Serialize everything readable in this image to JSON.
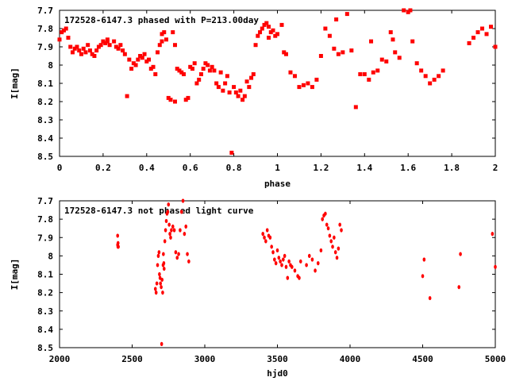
{
  "chart_data": [
    {
      "type": "scatter",
      "title": "172528-6147.3 phased with P=213.00day",
      "xlabel": "phase",
      "ylabel": "I[mag]",
      "xlim": [
        0,
        2
      ],
      "ylim": [
        7.7,
        8.5
      ],
      "y_inverted": true,
      "grid": false,
      "marker_color": "#ff0000",
      "xticks": [
        "0",
        "0.2",
        "0.4",
        "0.6",
        "0.8",
        "1",
        "1.2",
        "1.4",
        "1.6",
        "1.8",
        "2"
      ],
      "yticks": [
        "7.7",
        "7.8",
        "7.9",
        "8",
        "8.1",
        "8.2",
        "8.3",
        "8.4",
        "8.5"
      ],
      "series": [
        {
          "x": [
            0.0,
            0.02,
            0.03,
            0.04,
            0.05,
            0.06,
            0.07,
            0.08,
            0.09,
            0.1,
            0.11,
            0.12,
            0.13,
            0.14,
            0.15,
            0.16,
            0.17,
            0.18,
            0.19,
            0.2,
            0.21,
            0.22,
            0.23,
            0.25,
            0.26,
            0.27,
            0.28,
            0.29,
            0.3,
            0.31,
            0.32,
            0.33,
            0.34,
            0.35,
            0.36,
            0.37,
            0.38,
            0.39,
            0.4,
            0.41,
            0.42,
            0.43,
            0.44,
            0.45,
            0.46,
            0.47,
            0.48,
            0.49,
            0.5,
            0.51,
            0.52,
            0.53,
            0.54,
            0.55,
            0.56,
            0.57,
            0.58,
            0.59,
            0.6,
            0.61,
            0.62,
            0.63,
            0.64,
            0.65,
            0.66,
            0.67,
            0.68,
            0.69,
            0.7,
            0.71,
            0.72,
            0.73,
            0.74,
            0.75,
            0.76,
            0.77,
            0.78,
            0.79,
            0.8,
            0.81,
            0.82,
            0.83,
            0.84,
            0.85,
            0.86,
            0.87,
            0.88,
            0.89,
            0.9,
            0.91,
            0.92,
            0.93,
            0.94,
            0.95,
            0.96,
            0.97,
            0.98,
            0.99,
            1.0,
            1.02,
            1.04,
            1.06,
            1.08,
            1.1,
            1.12,
            1.14,
            1.16,
            1.18,
            1.2,
            1.22,
            1.24,
            1.26,
            1.28,
            1.3,
            1.32,
            1.34,
            1.36,
            1.38,
            1.4,
            1.42,
            1.44,
            1.46,
            1.48,
            1.5,
            1.52,
            1.54,
            1.56,
            1.58,
            1.6,
            1.62,
            1.64,
            1.66,
            1.68,
            1.7,
            1.72,
            1.74,
            1.76,
            1.88,
            1.9,
            1.92,
            1.94,
            1.96,
            1.98,
            2.0,
            0.01,
            0.22,
            0.47,
            0.53,
            0.96,
            1.03,
            1.27,
            1.43,
            1.53,
            1.61
          ],
          "y": [
            7.86,
            7.81,
            7.8,
            7.85,
            7.9,
            7.93,
            7.91,
            7.9,
            7.92,
            7.94,
            7.91,
            7.93,
            7.89,
            7.92,
            7.94,
            7.95,
            7.92,
            7.9,
            7.89,
            7.87,
            7.88,
            7.86,
            7.89,
            7.87,
            7.9,
            7.91,
            7.89,
            7.92,
            7.94,
            8.17,
            7.97,
            8.02,
            7.99,
            8.0,
            7.97,
            7.95,
            7.96,
            7.94,
            7.98,
            7.97,
            8.02,
            8.01,
            8.05,
            7.93,
            7.89,
            7.83,
            7.82,
            7.86,
            8.18,
            8.19,
            7.82,
            8.2,
            8.02,
            8.03,
            8.04,
            8.05,
            8.19,
            8.18,
            8.01,
            8.02,
            7.99,
            8.1,
            8.08,
            8.05,
            8.02,
            7.99,
            8.0,
            8.03,
            8.01,
            8.03,
            8.1,
            8.12,
            8.04,
            8.14,
            8.1,
            8.06,
            8.15,
            8.48,
            8.12,
            8.15,
            8.17,
            8.14,
            8.19,
            8.17,
            8.09,
            8.12,
            8.07,
            8.05,
            7.89,
            7.84,
            7.82,
            7.8,
            7.78,
            7.77,
            7.79,
            7.82,
            7.81,
            7.84,
            7.83,
            7.78,
            7.94,
            8.04,
            8.06,
            8.12,
            8.11,
            8.1,
            8.12,
            8.08,
            7.95,
            7.8,
            7.84,
            7.91,
            7.94,
            7.93,
            7.72,
            7.92,
            8.23,
            8.05,
            8.05,
            8.08,
            8.04,
            8.03,
            7.97,
            7.98,
            7.82,
            7.93,
            7.96,
            7.7,
            7.71,
            7.87,
            7.99,
            8.03,
            8.06,
            8.1,
            8.08,
            8.06,
            8.03,
            7.88,
            7.85,
            7.82,
            7.8,
            7.83,
            7.79,
            7.9,
            7.82,
            7.87,
            7.87,
            7.89,
            7.85,
            7.93,
            7.75,
            7.87,
            7.86,
            7.7
          ]
        }
      ]
    },
    {
      "type": "scatter",
      "title": "172528-6147.3 not phased light curve",
      "xlabel": "hjd0",
      "ylabel": "I[mag]",
      "xlim": [
        2000,
        5000
      ],
      "ylim": [
        7.7,
        8.5
      ],
      "y_inverted": true,
      "grid": false,
      "marker_color": "#ff0000",
      "xticks": [
        "2000",
        "2500",
        "3000",
        "3500",
        "4000",
        "4500",
        "5000"
      ],
      "yticks": [
        "7.7",
        "7.8",
        "7.9",
        "8",
        "8.1",
        "8.2",
        "8.3",
        "8.4",
        "8.5"
      ],
      "series": [
        {
          "x": [
            2400,
            2400,
            2402,
            2403,
            2405,
            2660,
            2665,
            2670,
            2675,
            2680,
            2685,
            2688,
            2692,
            2695,
            2700,
            2703,
            2706,
            2710,
            2713,
            2715,
            2718,
            2720,
            2725,
            2730,
            2735,
            2740,
            2745,
            2750,
            2755,
            2760,
            2765,
            2770,
            2780,
            2790,
            2800,
            2810,
            2820,
            2830,
            2840,
            2850,
            2860,
            2870,
            2880,
            2890,
            3400,
            3410,
            3420,
            3430,
            3440,
            3450,
            3460,
            3470,
            3480,
            3490,
            3500,
            3510,
            3520,
            3530,
            3540,
            3550,
            3560,
            3570,
            3580,
            3590,
            3600,
            3620,
            3640,
            3650,
            3660,
            3700,
            3720,
            3740,
            3760,
            3780,
            3800,
            3810,
            3820,
            3830,
            3840,
            3850,
            3860,
            3870,
            3880,
            3890,
            3900,
            3910,
            3920,
            3930,
            3940,
            4500,
            4510,
            4550,
            4750,
            4760,
            4980,
            5000
          ],
          "y": [
            7.89,
            7.94,
            7.95,
            7.93,
            7.95,
            8.18,
            8.2,
            8.15,
            8.05,
            8.0,
            7.98,
            8.1,
            8.12,
            8.15,
            8.17,
            8.48,
            8.13,
            8.2,
            8.05,
            7.99,
            8.04,
            8.07,
            7.92,
            7.86,
            7.81,
            7.77,
            7.76,
            7.72,
            7.83,
            7.88,
            7.9,
            7.86,
            7.84,
            7.86,
            7.98,
            8.01,
            7.99,
            7.86,
            7.76,
            7.7,
            7.88,
            7.84,
            7.99,
            8.03,
            7.88,
            7.9,
            7.92,
            7.86,
            7.89,
            7.9,
            7.95,
            7.98,
            8.02,
            8.04,
            7.97,
            8.01,
            8.03,
            8.05,
            8.02,
            8.0,
            8.06,
            8.12,
            8.03,
            8.05,
            8.06,
            8.08,
            8.11,
            8.12,
            8.03,
            8.05,
            8.0,
            8.02,
            8.08,
            8.04,
            7.97,
            7.8,
            7.78,
            7.77,
            7.83,
            7.85,
            7.89,
            7.92,
            7.95,
            7.9,
            7.98,
            8.01,
            7.96,
            7.83,
            7.86,
            8.11,
            8.02,
            8.23,
            8.17,
            7.99,
            7.88,
            8.06
          ]
        }
      ]
    }
  ]
}
